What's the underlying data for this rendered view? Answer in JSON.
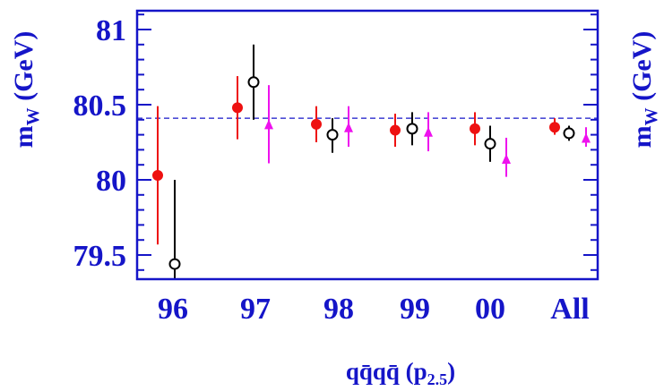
{
  "chart_data": {
    "type": "scatter",
    "xlabel": {
      "main": "qq̄qq̄ (p",
      "sub": "2.5",
      "close": ")"
    },
    "ylabel": {
      "main": "m",
      "sub": "W",
      "unit": " (GeV)"
    },
    "categories": [
      "96",
      "97",
      "98",
      "99",
      "00",
      "All"
    ],
    "yticks": [
      "79.5",
      "80",
      "80.5",
      "81"
    ],
    "ylim": [
      79.3,
      81.2
    ],
    "reference_line": 80.41,
    "series": [
      {
        "marker": "filled-circle",
        "color": "#ee1111",
        "offset": -0.3,
        "points": [
          {
            "x": "96",
            "y": 80.03,
            "low": 79.57,
            "high": 80.49
          },
          {
            "x": "97",
            "y": 80.48,
            "low": 80.27,
            "high": 80.69
          },
          {
            "x": "98",
            "y": 80.37,
            "low": 80.25,
            "high": 80.49
          },
          {
            "x": "99",
            "y": 80.33,
            "low": 80.22,
            "high": 80.44
          },
          {
            "x": "00",
            "y": 80.34,
            "low": 80.23,
            "high": 80.45
          },
          {
            "x": "All",
            "y": 80.35,
            "low": 80.3,
            "high": 80.41
          }
        ]
      },
      {
        "marker": "open-circle",
        "color": "#000000",
        "offset": 0.0,
        "points": [
          {
            "x": "96",
            "y": 79.44,
            "low": 79.3,
            "high": 80.0
          },
          {
            "x": "97",
            "y": 80.65,
            "low": 80.4,
            "high": 80.9
          },
          {
            "x": "98",
            "y": 80.3,
            "low": 80.18,
            "high": 80.41
          },
          {
            "x": "99",
            "y": 80.34,
            "low": 80.23,
            "high": 80.45
          },
          {
            "x": "00",
            "y": 80.24,
            "low": 80.12,
            "high": 80.36
          },
          {
            "x": "All",
            "y": 80.31,
            "low": 80.26,
            "high": 80.36
          }
        ]
      },
      {
        "marker": "filled-triangle",
        "color": "#ee11ee",
        "offset": 0.3,
        "points": [
          {
            "x": "97",
            "y": 80.37,
            "low": 80.11,
            "high": 80.63
          },
          {
            "x": "98",
            "y": 80.35,
            "low": 80.22,
            "high": 80.49
          },
          {
            "x": "99",
            "y": 80.32,
            "low": 80.19,
            "high": 80.45
          },
          {
            "x": "00",
            "y": 80.14,
            "low": 80.02,
            "high": 80.28
          },
          {
            "x": "All",
            "y": 80.28,
            "low": 80.22,
            "high": 80.35
          }
        ]
      }
    ]
  }
}
